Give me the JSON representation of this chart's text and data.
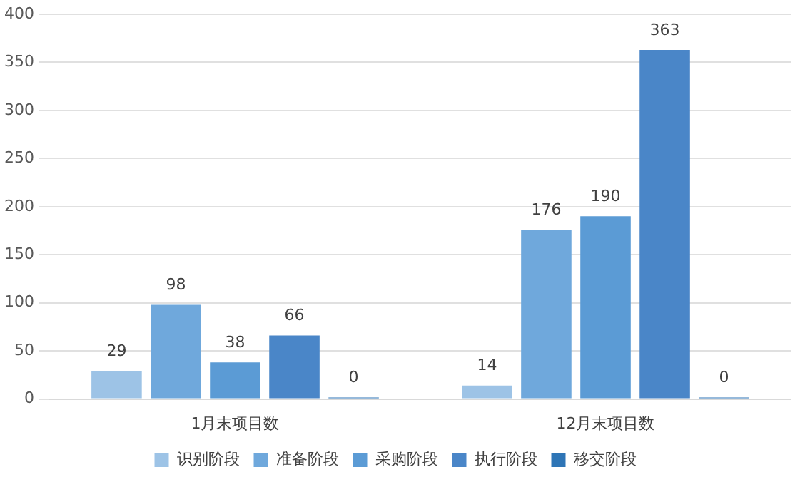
{
  "chart_data": {
    "type": "bar",
    "categories": [
      "1月末项目数",
      "12月末项目数"
    ],
    "series": [
      {
        "name": "识别阶段",
        "color": "#9dc3e6",
        "values": [
          29,
          14
        ]
      },
      {
        "name": "准备阶段",
        "color": "#6fa8dc",
        "values": [
          98,
          176
        ]
      },
      {
        "name": "采购阶段",
        "color": "#5b9bd5",
        "values": [
          38,
          190
        ]
      },
      {
        "name": "执行阶段",
        "color": "#4a86c8",
        "values": [
          66,
          363
        ]
      },
      {
        "name": "移交阶段",
        "color": "#2e75b6",
        "values": [
          0,
          0
        ]
      }
    ],
    "ylim": [
      0,
      400
    ],
    "yticks": [
      0,
      50,
      100,
      150,
      200,
      250,
      300,
      350,
      400
    ],
    "grid": "y",
    "legend": "bottom",
    "data_labels": true
  }
}
